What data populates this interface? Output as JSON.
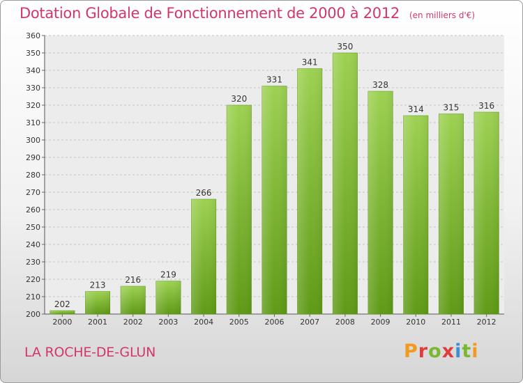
{
  "header": {
    "title": "Dotation Globale de Fonctionnement de 2000 à 2012",
    "unit": "(en milliers d'€)"
  },
  "footer": {
    "commune": "LA ROCHE-DE-GLUN",
    "brand": [
      "P",
      "r",
      "o",
      "x",
      "i",
      "t",
      "i"
    ]
  },
  "chart_data": {
    "type": "bar",
    "title": "Dotation Globale de Fonctionnement de 2000 à 2012",
    "subtitle": "(en milliers d'€)",
    "xlabel": "",
    "ylabel": "",
    "categories": [
      "2000",
      "2001",
      "2002",
      "2003",
      "2004",
      "2005",
      "2006",
      "2007",
      "2008",
      "2009",
      "2010",
      "2011",
      "2012"
    ],
    "values": [
      202,
      213,
      216,
      219,
      266,
      320,
      331,
      341,
      350,
      328,
      314,
      315,
      316
    ],
    "ylim": [
      200,
      360
    ],
    "yticks": [
      200,
      210,
      220,
      230,
      240,
      250,
      260,
      270,
      280,
      290,
      300,
      310,
      320,
      330,
      340,
      350,
      360
    ],
    "grid": true,
    "bar_color": "#7fbf3a",
    "data_labels": true
  }
}
